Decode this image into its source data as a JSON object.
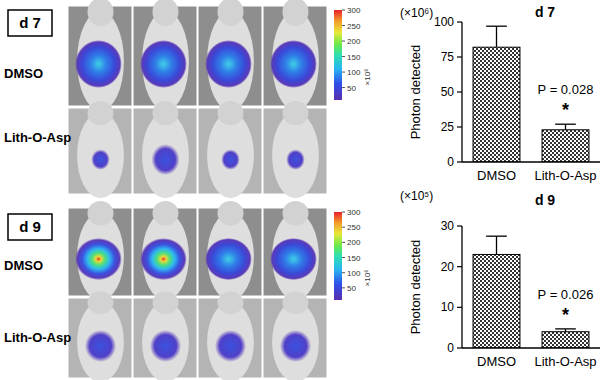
{
  "chart_data": [
    {
      "type": "bar",
      "title": "d 7",
      "subtitle": "(×10⁶)",
      "y_label": "Photon detected",
      "categories": [
        "DMSO",
        "Lith-O-Asp"
      ],
      "values": [
        82,
        23
      ],
      "errors": [
        15,
        4
      ],
      "color": "#333333",
      "ylim": [
        0,
        100
      ],
      "yticks": [
        0,
        25,
        50,
        75,
        100
      ],
      "grid": false,
      "annotations": [
        "P = 0.028",
        "*"
      ]
    },
    {
      "type": "bar",
      "title": "d 9",
      "subtitle": "(×10⁵)",
      "y_label": "Photon detected",
      "categories": [
        "DMSO",
        "Lith-O-Asp"
      ],
      "values": [
        23,
        4
      ],
      "errors": [
        4.5,
        0.7
      ],
      "color": "#333333",
      "ylim": [
        0,
        30
      ],
      "yticks": [
        0,
        10,
        20,
        30
      ],
      "grid": false,
      "annotations": [
        "P = 0.026",
        "*"
      ]
    }
  ],
  "image_panels": [
    {
      "day": "d 7",
      "rows": [
        "DMSO",
        "Lith-O-Asp"
      ]
    },
    {
      "day": "d 9",
      "rows": [
        "DMSO",
        "Lith-O-Asp"
      ]
    }
  ],
  "colorbar": {
    "range": [
      10,
      300
    ],
    "ticks": [
      50,
      100,
      150,
      200,
      250,
      300
    ],
    "label": "×10⁶"
  }
}
